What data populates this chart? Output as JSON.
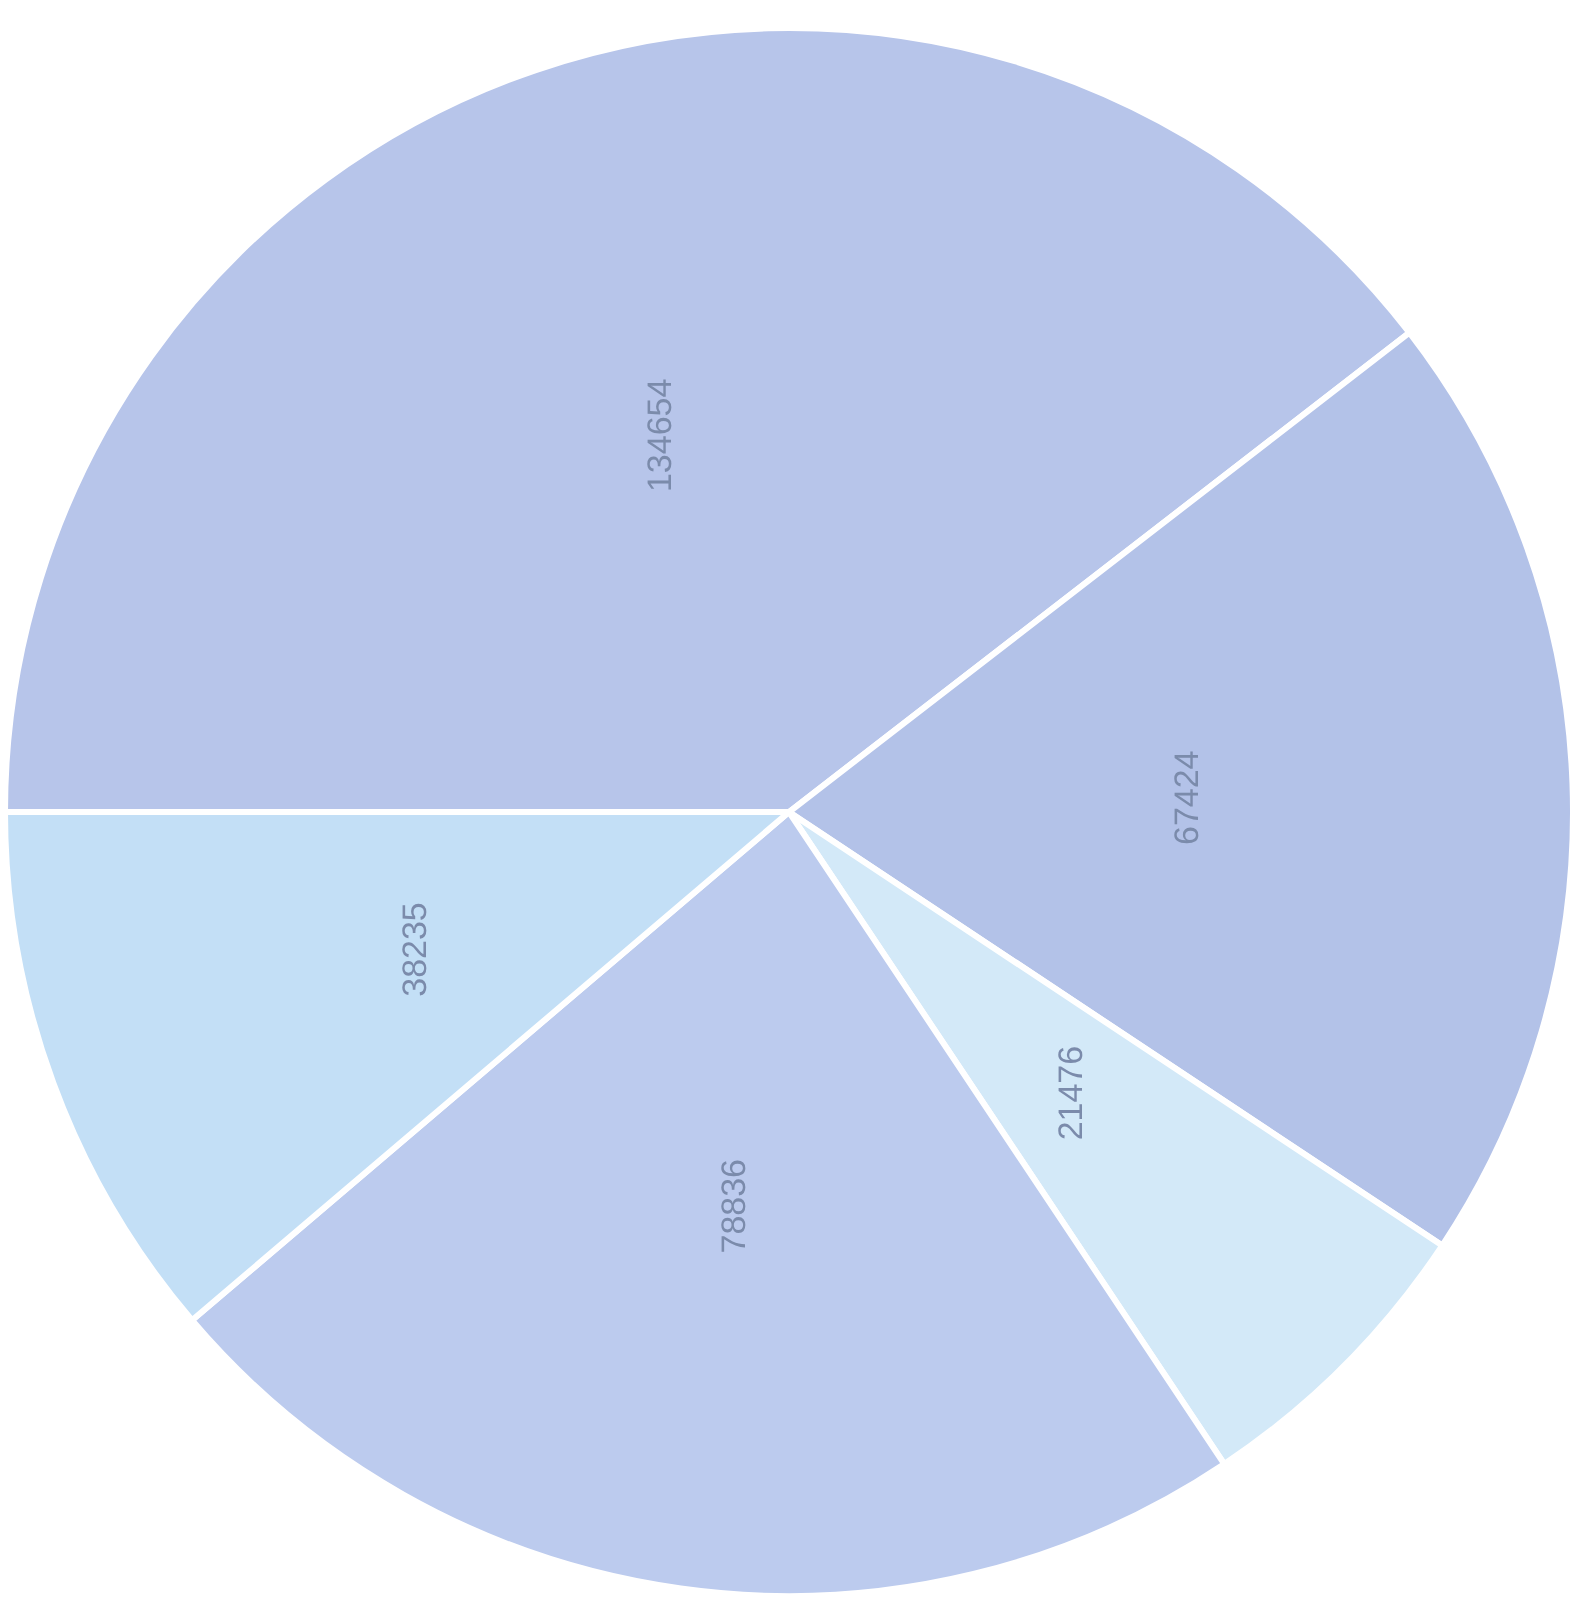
{
  "chart_data": {
    "type": "pie",
    "categories": [
      null,
      null,
      null,
      null,
      null
    ],
    "values": [
      134654,
      67424,
      21476,
      78836,
      38235
    ],
    "colors": [
      "#b7c5ea",
      "#b3c2e8",
      "#d3e9f8",
      "#bccbee",
      "#c3dff6"
    ],
    "data_labels": true
  }
}
